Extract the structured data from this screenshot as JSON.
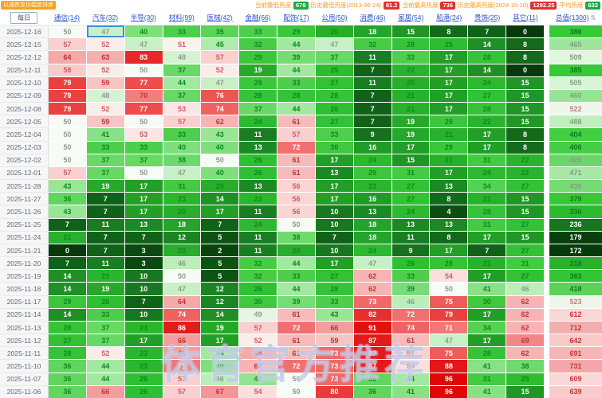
{
  "toolbar": {
    "sort_badge": "以涨跌变化幅度排序",
    "legend": [
      {
        "label": "当前最低热度",
        "value": "679",
        "badge_color": "#21a842"
      },
      {
        "label": "历史最低热度(2013-06-24)",
        "value": "81.2",
        "badge_color": "#e03131"
      },
      {
        "label": "当前最高热度",
        "value": "736",
        "badge_color": "#e03131"
      },
      {
        "label": "历史最高热度(2024-10-10)",
        "value": "1282.25",
        "badge_color": "#e03131"
      },
      {
        "label": "平均热度",
        "value": "632",
        "badge_color": "#21a842"
      }
    ]
  },
  "table": {
    "date_header": "每日",
    "total_header": "总值(1300)",
    "sort_icon": "⇅",
    "columns": [
      "通信(14)",
      "汽车(32)",
      "半导(30)",
      "材料(99)",
      "医械(42)",
      "金融(66)",
      "配饰(17)",
      "公用(50)",
      "消费(46)",
      "家居(54)",
      "船港(24)",
      "贵饰(25)",
      "其它(11)"
    ],
    "rows": [
      {
        "date": "2025-12-16",
        "values": [
          50,
          47,
          40,
          33,
          35,
          33,
          29,
          20,
          18,
          15,
          8,
          7,
          0
        ],
        "total": 386
      },
      {
        "date": "2025-12-15",
        "values": [
          57,
          52,
          47,
          51,
          45,
          32,
          44,
          47,
          32,
          28,
          25,
          14,
          8
        ],
        "total": 465
      },
      {
        "date": "2025-12-12",
        "values": [
          64,
          63,
          83,
          48,
          57,
          29,
          39,
          37,
          11,
          33,
          17,
          28,
          8
        ],
        "total": 509
      },
      {
        "date": "2025-12-11",
        "values": [
          58,
          52,
          50,
          37,
          52,
          19,
          44,
          25,
          7,
          22,
          17,
          14,
          0
        ],
        "total": 385
      },
      {
        "date": "2025-12-10",
        "values": [
          79,
          59,
          77,
          44,
          47,
          29,
          33,
          27,
          11,
          20,
          17,
          24,
          15
        ],
        "total": 505
      },
      {
        "date": "2025-12-09",
        "values": [
          79,
          48,
          70,
          37,
          76,
          28,
          28,
          28,
          7,
          21,
          17,
          27,
          15
        ],
        "total": 460
      },
      {
        "date": "2025-12-08",
        "values": [
          79,
          52,
          77,
          53,
          74,
          37,
          44,
          26,
          7,
          21,
          17,
          28,
          15
        ],
        "total": 522
      },
      {
        "date": "2025-12-05",
        "values": [
          50,
          59,
          50,
          57,
          62,
          24,
          61,
          27,
          7,
          19,
          29,
          22,
          15
        ],
        "total": 488
      },
      {
        "date": "2025-12-04",
        "values": [
          50,
          41,
          53,
          33,
          43,
          11,
          57,
          33,
          9,
          19,
          21,
          17,
          8
        ],
        "total": 404
      },
      {
        "date": "2025-12-03",
        "values": [
          50,
          33,
          33,
          40,
          40,
          13,
          72,
          30,
          16,
          17,
          29,
          17,
          8
        ],
        "total": 406
      },
      {
        "date": "2025-12-02",
        "values": [
          50,
          37,
          37,
          38,
          50,
          26,
          61,
          17,
          24,
          15,
          21,
          31,
          22
        ],
        "total": 429
      },
      {
        "date": "2025-12-01",
        "values": [
          57,
          37,
          50,
          47,
          40,
          26,
          61,
          13,
          29,
          31,
          17,
          24,
          22
        ],
        "total": 471
      },
      {
        "date": "2025-11-28",
        "values": [
          43,
          19,
          17,
          31,
          20,
          13,
          56,
          17,
          23,
          27,
          13,
          34,
          27
        ],
        "total": 436
      },
      {
        "date": "2025-11-27",
        "values": [
          36,
          7,
          17,
          23,
          14,
          23,
          56,
          17,
          16,
          27,
          8,
          21,
          15
        ],
        "total": 379
      },
      {
        "date": "2025-11-26",
        "values": [
          43,
          7,
          17,
          20,
          17,
          11,
          56,
          10,
          13,
          24,
          4,
          28,
          15
        ],
        "total": 336
      },
      {
        "date": "2025-11-25",
        "values": [
          7,
          11,
          13,
          18,
          7,
          24,
          50,
          10,
          18,
          13,
          13,
          31,
          27
        ],
        "total": 236
      },
      {
        "date": "2025-11-24",
        "values": [
          21,
          7,
          7,
          12,
          5,
          11,
          38,
          7,
          18,
          11,
          8,
          17,
          15
        ],
        "total": 179
      },
      {
        "date": "2025-11-21",
        "values": [
          0,
          7,
          3,
          20,
          2,
          11,
          20,
          10,
          24,
          9,
          17,
          7,
          27
        ],
        "total": 172
      },
      {
        "date": "2025-11-20",
        "values": [
          7,
          11,
          3,
          46,
          5,
          32,
          44,
          17,
          47,
          26,
          28,
          21,
          31
        ],
        "total": 318
      },
      {
        "date": "2025-11-19",
        "values": [
          14,
          23,
          10,
          50,
          5,
          32,
          33,
          27,
          62,
          33,
          54,
          17,
          27
        ],
        "total": 363
      },
      {
        "date": "2025-11-18",
        "values": [
          14,
          19,
          10,
          47,
          12,
          26,
          44,
          28,
          62,
          39,
          50,
          41,
          46
        ],
        "total": 418
      },
      {
        "date": "2025-11-17",
        "values": [
          29,
          26,
          7,
          64,
          12,
          30,
          39,
          33,
          73,
          46,
          75,
          30,
          62
        ],
        "total": 523
      },
      {
        "date": "2025-11-14",
        "values": [
          14,
          33,
          10,
          74,
          14,
          49,
          61,
          43,
          82,
          72,
          79,
          17,
          62
        ],
        "total": 612
      },
      {
        "date": "2025-11-13",
        "values": [
          28,
          37,
          23,
          86,
          19,
          57,
          72,
          66,
          91,
          74,
          71,
          34,
          62
        ],
        "total": 712
      },
      {
        "date": "2025-11-12",
        "values": [
          27,
          37,
          17,
          66,
          17,
          52,
          61,
          59,
          87,
          61,
          47,
          17,
          69
        ],
        "total": 642
      },
      {
        "date": "2025-11-11",
        "values": [
          28,
          52,
          23,
          66,
          44,
          64,
          61,
          73,
          87,
          57,
          75,
          28,
          62
        ],
        "total": 691
      },
      {
        "date": "2025-11-10",
        "values": [
          36,
          44,
          23,
          71,
          40,
          62,
          72,
          73,
          87,
          54,
          88,
          41,
          38
        ],
        "total": 731
      },
      {
        "date": "2025-11-07",
        "values": [
          36,
          44,
          26,
          57,
          46,
          42,
          50,
          73,
          36,
          44,
          96,
          31,
          25
        ],
        "total": 609
      },
      {
        "date": "2025-11-06",
        "values": [
          36,
          66,
          26,
          57,
          67,
          54,
          50,
          80,
          36,
          41,
          96,
          41,
          15
        ],
        "total": 639
      }
    ]
  },
  "selection": {
    "row": 0,
    "col": 1,
    "border_color": "#3f8fd6"
  },
  "watermark": "体育官方推荐",
  "colors": {
    "cell_ramp": [
      [
        0,
        "#063a0b"
      ],
      [
        5,
        "#0d5413"
      ],
      [
        10,
        "#187821"
      ],
      [
        15,
        "#1f9626"
      ],
      [
        20,
        "#28ad2c"
      ],
      [
        26,
        "#2fbf32"
      ],
      [
        32,
        "#48cc46"
      ],
      [
        38,
        "#6eda6c"
      ],
      [
        44,
        "#a2e8a0"
      ],
      [
        48,
        "#d4f3d2"
      ],
      [
        50,
        "#f6fbf5"
      ],
      [
        54,
        "#fbdfdf"
      ],
      [
        60,
        "#f7c0c0"
      ],
      [
        66,
        "#f49d9d"
      ],
      [
        72,
        "#f07070"
      ],
      [
        78,
        "#ec4646"
      ],
      [
        85,
        "#e51d1d"
      ],
      [
        100,
        "#dd0000"
      ]
    ],
    "total_ramp": [
      [
        170,
        "#063a0b"
      ],
      [
        210,
        "#0d5413"
      ],
      [
        250,
        "#1b8a22"
      ],
      [
        300,
        "#25a82a"
      ],
      [
        350,
        "#2fc231"
      ],
      [
        400,
        "#3bcc3b"
      ],
      [
        440,
        "#7ddb7b"
      ],
      [
        480,
        "#b2ecb0"
      ],
      [
        515,
        "#e9f8e7"
      ],
      [
        545,
        "#fdf3f3"
      ],
      [
        580,
        "#fbe3e3"
      ],
      [
        620,
        "#f9d4d4"
      ],
      [
        680,
        "#f5baba"
      ],
      [
        740,
        "#f2a5a5"
      ]
    ]
  }
}
